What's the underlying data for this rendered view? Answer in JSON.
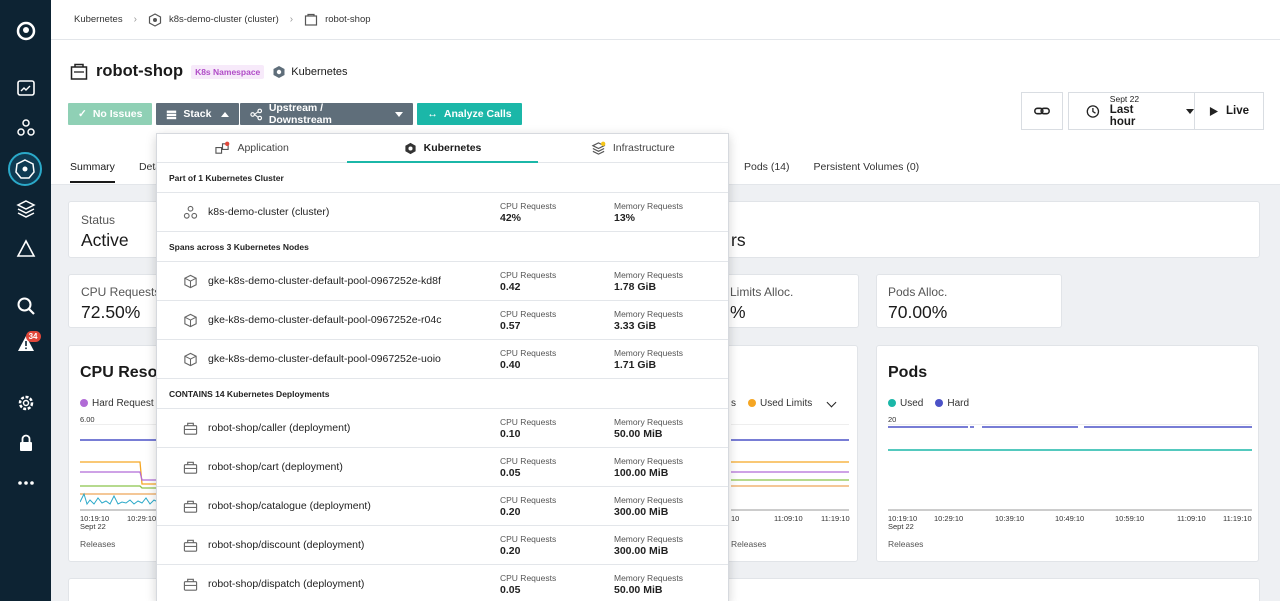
{
  "breadcrumb": {
    "items": [
      "Kubernetes",
      "k8s-demo-cluster (cluster)",
      "robot-shop"
    ]
  },
  "header": {
    "title": "robot-shop",
    "ns_tag": "K8s Namespace",
    "technology": "Kubernetes"
  },
  "timerange": {
    "date": "Sept 22",
    "label": "Last hour",
    "live": "Live"
  },
  "buttons": {
    "no_issues": "No Issues",
    "stack": "Stack",
    "upstream": "Upstream / Downstream",
    "analyze": "Analyze Calls"
  },
  "tabs": {
    "summary": "Summary",
    "details": "Deta",
    "pods": "Pods (14)",
    "pv": "Persistent Volumes (0)"
  },
  "status": {
    "label": "Status",
    "value": "Active",
    "value2": "rs"
  },
  "cpu_requests": {
    "label": "CPU Requests",
    "value": "72.50%"
  },
  "limits": {
    "label": "Limits Alloc.",
    "value": "%"
  },
  "pods_alloc": {
    "label": "Pods Alloc.",
    "value": "70.00%"
  },
  "cpu_chart": {
    "title": "CPU Resou",
    "legend": "Hard Request",
    "ymax": "6.00",
    "x": [
      "10:19:10",
      "10:29:10"
    ],
    "date": "Sept 22",
    "releases": "Releases"
  },
  "mid_chart": {
    "legend_a": "s",
    "legend_b": "Used Limits",
    "x": [
      "11:09:10",
      "11:19:10"
    ],
    "x0": "10",
    "releases": "Releases"
  },
  "pods_chart": {
    "title": "Pods",
    "legend_used": "Used",
    "legend_hard": "Hard",
    "ymax": "20",
    "x": [
      "10:19:10",
      "10:29:10",
      "10:39:10",
      "10:49:10",
      "10:59:10",
      "11:09:10",
      "11:19:10"
    ],
    "date": "Sept 22",
    "releases": "Releases"
  },
  "dropdown": {
    "tabs": [
      "Application",
      "Kubernetes",
      "Infrastructure"
    ],
    "cluster_section": "Part of 1 Kubernetes Cluster",
    "cluster": {
      "name": "k8s-demo-cluster (cluster)",
      "cpu_label": "CPU Requests",
      "cpu": "42%",
      "mem_label": "Memory Requests",
      "mem": "13%"
    },
    "nodes_section": "Spans across 3 Kubernetes Nodes",
    "nodes": [
      {
        "name": "gke-k8s-demo-cluster-default-pool-0967252e-kd8f",
        "cpu_label": "CPU Requests",
        "cpu": "0.42",
        "mem_label": "Memory Requests",
        "mem": "1.78 GiB"
      },
      {
        "name": "gke-k8s-demo-cluster-default-pool-0967252e-r04c",
        "cpu_label": "CPU Requests",
        "cpu": "0.57",
        "mem_label": "Memory Requests",
        "mem": "3.33 GiB"
      },
      {
        "name": "gke-k8s-demo-cluster-default-pool-0967252e-uoio",
        "cpu_label": "CPU Requests",
        "cpu": "0.40",
        "mem_label": "Memory Requests",
        "mem": "1.71 GiB"
      }
    ],
    "deploy_section": "CONTAINS 14 Kubernetes Deployments",
    "deployments": [
      {
        "name": "robot-shop/caller (deployment)",
        "cpu_label": "CPU Requests",
        "cpu": "0.10",
        "mem_label": "Memory Requests",
        "mem": "50.00 MiB"
      },
      {
        "name": "robot-shop/cart (deployment)",
        "cpu_label": "CPU Requests",
        "cpu": "0.05",
        "mem_label": "Memory Requests",
        "mem": "100.00 MiB"
      },
      {
        "name": "robot-shop/catalogue (deployment)",
        "cpu_label": "CPU Requests",
        "cpu": "0.20",
        "mem_label": "Memory Requests",
        "mem": "300.00 MiB"
      },
      {
        "name": "robot-shop/discount (deployment)",
        "cpu_label": "CPU Requests",
        "cpu": "0.20",
        "mem_label": "Memory Requests",
        "mem": "300.00 MiB"
      },
      {
        "name": "robot-shop/dispatch (deployment)",
        "cpu_label": "CPU Requests",
        "cpu": "0.05",
        "mem_label": "Memory Requests",
        "mem": "50.00 MiB"
      }
    ]
  },
  "sidebar": {
    "alert_count": "34",
    "icons": [
      "instana-logo-icon",
      "dashboard-icon",
      "infrastructure-icon",
      "kubernetes-icon",
      "stack-icon",
      "platform-icon",
      "search-icon",
      "alert-icon",
      "settings-icon",
      "lock-icon",
      "more-icon"
    ]
  },
  "colors": {
    "accent": "#1bb7a8",
    "rail": "#0d2333",
    "tag": "#b04cc7"
  }
}
